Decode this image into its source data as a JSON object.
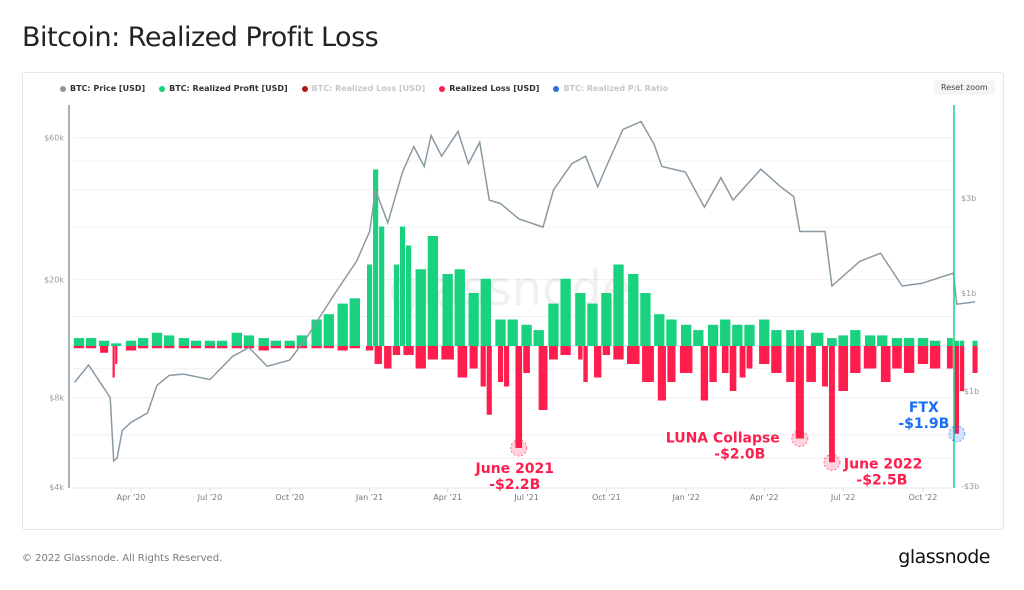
{
  "title": "Bitcoin: Realized Profit Loss",
  "reset_zoom": "Reset zoom",
  "footer": "© 2022 Glassnode. All Rights Reserved.",
  "logo": "glassnode",
  "watermark": "glassnode",
  "legend": [
    {
      "label": "BTC: Price [USD]",
      "color": "#8a9aa3",
      "active": true
    },
    {
      "label": "BTC: Realized Profit [USD]",
      "color": "#19d17f",
      "active": true
    },
    {
      "label": "BTC: Realized Loss [USD]",
      "color": "#b31515",
      "active": false
    },
    {
      "label": "Realized Loss [USD]",
      "color": "#ff1d4e",
      "active": true
    },
    {
      "label": "BTC: Realized P/L Ratio",
      "color": "#2a6dd6",
      "active": false
    }
  ],
  "chart_data": {
    "type": "bar+line",
    "x_ticks": [
      {
        "label": "Apr '20",
        "date": "2020-04-01"
      },
      {
        "label": "Jul '20",
        "date": "2020-07-01"
      },
      {
        "label": "Oct '20",
        "date": "2020-10-01"
      },
      {
        "label": "Jan '21",
        "date": "2021-01-01"
      },
      {
        "label": "Apr '21",
        "date": "2021-04-01"
      },
      {
        "label": "Jul '21",
        "date": "2021-07-01"
      },
      {
        "label": "Oct '21",
        "date": "2021-10-01"
      },
      {
        "label": "Jan '22",
        "date": "2022-01-01"
      },
      {
        "label": "Apr '22",
        "date": "2022-04-01"
      },
      {
        "label": "Jul '22",
        "date": "2022-07-01"
      },
      {
        "label": "Oct '22",
        "date": "2022-10-01"
      }
    ],
    "left_axis": {
      "scale": "log",
      "ticks": [
        {
          "label": "$60k",
          "value": 60000
        },
        {
          "label": "$20k",
          "value": 20000
        },
        {
          "label": "$8k",
          "value": 8000
        },
        {
          "label": "$4k",
          "value": 4000
        }
      ]
    },
    "right_axis": {
      "ticks": [
        {
          "label": "$3b",
          "value": 3
        },
        {
          "label": "$1b",
          "value": 1
        },
        {
          "label": "-$1b",
          "value": -1
        },
        {
          "label": "-$3b",
          "value": -3
        }
      ],
      "unit": "USD billions"
    },
    "price": {
      "name": "BTC: Price [USD]",
      "color": "#8a9aa3",
      "points": [
        [
          "2020-01-27",
          9000
        ],
        [
          "2020-02-12",
          10300
        ],
        [
          "2020-03-01",
          8600
        ],
        [
          "2020-03-08",
          8000
        ],
        [
          "2020-03-12",
          4900
        ],
        [
          "2020-03-16",
          5000
        ],
        [
          "2020-03-22",
          6200
        ],
        [
          "2020-04-01",
          6600
        ],
        [
          "2020-04-20",
          7100
        ],
        [
          "2020-05-01",
          8800
        ],
        [
          "2020-05-15",
          9500
        ],
        [
          "2020-06-01",
          9600
        ],
        [
          "2020-07-01",
          9200
        ],
        [
          "2020-07-27",
          11000
        ],
        [
          "2020-08-15",
          11800
        ],
        [
          "2020-09-05",
          10200
        ],
        [
          "2020-10-01",
          10700
        ],
        [
          "2020-10-21",
          12800
        ],
        [
          "2020-11-05",
          15000
        ],
        [
          "2020-11-25",
          18500
        ],
        [
          "2020-12-17",
          23000
        ],
        [
          "2021-01-01",
          29000
        ],
        [
          "2021-01-08",
          40000
        ],
        [
          "2021-01-22",
          31000
        ],
        [
          "2021-02-08",
          46000
        ],
        [
          "2021-02-21",
          56000
        ],
        [
          "2021-03-05",
          48000
        ],
        [
          "2021-03-13",
          61000
        ],
        [
          "2021-03-25",
          52000
        ],
        [
          "2021-04-13",
          63000
        ],
        [
          "2021-04-25",
          49000
        ],
        [
          "2021-05-08",
          58000
        ],
        [
          "2021-05-19",
          37000
        ],
        [
          "2021-06-01",
          36000
        ],
        [
          "2021-06-22",
          32000
        ],
        [
          "2021-07-20",
          30000
        ],
        [
          "2021-08-01",
          40000
        ],
        [
          "2021-08-22",
          49000
        ],
        [
          "2021-09-07",
          52000
        ],
        [
          "2021-09-21",
          41000
        ],
        [
          "2021-10-01",
          48000
        ],
        [
          "2021-10-20",
          64000
        ],
        [
          "2021-11-10",
          68000
        ],
        [
          "2021-11-25",
          57000
        ],
        [
          "2021-12-04",
          48000
        ],
        [
          "2021-12-31",
          46000
        ],
        [
          "2022-01-22",
          35000
        ],
        [
          "2022-02-10",
          44000
        ],
        [
          "2022-02-24",
          37000
        ],
        [
          "2022-03-28",
          47000
        ],
        [
          "2022-04-20",
          41000
        ],
        [
          "2022-05-05",
          38000
        ],
        [
          "2022-05-12",
          29000
        ],
        [
          "2022-06-10",
          29000
        ],
        [
          "2022-06-18",
          19000
        ],
        [
          "2022-07-20",
          23000
        ],
        [
          "2022-08-13",
          24500
        ],
        [
          "2022-09-07",
          19000
        ],
        [
          "2022-09-30",
          19400
        ],
        [
          "2022-10-25",
          20500
        ],
        [
          "2022-11-05",
          21000
        ],
        [
          "2022-11-09",
          16500
        ],
        [
          "2022-11-30",
          16800
        ]
      ]
    },
    "realized_profit": {
      "name": "BTC: Realized Profit [USD]",
      "color": "#19d17f",
      "points": [
        [
          "2020-02-01",
          0.15
        ],
        [
          "2020-02-15",
          0.15
        ],
        [
          "2020-03-01",
          0.1
        ],
        [
          "2020-03-15",
          0.05
        ],
        [
          "2020-04-01",
          0.1
        ],
        [
          "2020-04-15",
          0.15
        ],
        [
          "2020-05-01",
          0.25
        ],
        [
          "2020-05-15",
          0.2
        ],
        [
          "2020-06-01",
          0.15
        ],
        [
          "2020-06-15",
          0.1
        ],
        [
          "2020-07-01",
          0.1
        ],
        [
          "2020-07-15",
          0.1
        ],
        [
          "2020-08-01",
          0.25
        ],
        [
          "2020-08-15",
          0.2
        ],
        [
          "2020-09-01",
          0.15
        ],
        [
          "2020-09-15",
          0.1
        ],
        [
          "2020-10-01",
          0.1
        ],
        [
          "2020-10-15",
          0.2
        ],
        [
          "2020-11-01",
          0.5
        ],
        [
          "2020-11-15",
          0.6
        ],
        [
          "2020-12-01",
          0.8
        ],
        [
          "2020-12-15",
          0.9
        ],
        [
          "2021-01-01",
          1.6
        ],
        [
          "2021-01-08",
          3.6
        ],
        [
          "2021-01-15",
          2.4
        ],
        [
          "2021-02-01",
          1.6
        ],
        [
          "2021-02-08",
          2.4
        ],
        [
          "2021-02-15",
          2.0
        ],
        [
          "2021-03-01",
          1.5
        ],
        [
          "2021-03-15",
          2.2
        ],
        [
          "2021-04-01",
          1.4
        ],
        [
          "2021-04-15",
          1.5
        ],
        [
          "2021-05-01",
          1.0
        ],
        [
          "2021-05-15",
          1.3
        ],
        [
          "2021-06-01",
          0.5
        ],
        [
          "2021-06-15",
          0.5
        ],
        [
          "2021-07-01",
          0.4
        ],
        [
          "2021-07-15",
          0.3
        ],
        [
          "2021-08-01",
          0.8
        ],
        [
          "2021-08-15",
          1.3
        ],
        [
          "2021-09-01",
          1.0
        ],
        [
          "2021-09-15",
          0.8
        ],
        [
          "2021-10-01",
          1.0
        ],
        [
          "2021-10-15",
          1.6
        ],
        [
          "2021-11-01",
          1.4
        ],
        [
          "2021-11-15",
          1.0
        ],
        [
          "2021-12-01",
          0.6
        ],
        [
          "2021-12-15",
          0.5
        ],
        [
          "2022-01-01",
          0.4
        ],
        [
          "2022-01-15",
          0.3
        ],
        [
          "2022-02-01",
          0.4
        ],
        [
          "2022-02-15",
          0.5
        ],
        [
          "2022-03-01",
          0.4
        ],
        [
          "2022-03-15",
          0.4
        ],
        [
          "2022-04-01",
          0.5
        ],
        [
          "2022-04-15",
          0.3
        ],
        [
          "2022-05-01",
          0.3
        ],
        [
          "2022-05-12",
          0.3
        ],
        [
          "2022-06-01",
          0.25
        ],
        [
          "2022-06-18",
          0.15
        ],
        [
          "2022-07-01",
          0.2
        ],
        [
          "2022-07-15",
          0.3
        ],
        [
          "2022-08-01",
          0.2
        ],
        [
          "2022-08-15",
          0.2
        ],
        [
          "2022-09-01",
          0.15
        ],
        [
          "2022-09-15",
          0.15
        ],
        [
          "2022-10-01",
          0.15
        ],
        [
          "2022-10-15",
          0.1
        ],
        [
          "2022-11-01",
          0.15
        ],
        [
          "2022-11-09",
          0.1
        ],
        [
          "2022-11-15",
          0.1
        ],
        [
          "2022-11-30",
          0.1
        ]
      ]
    },
    "realized_loss": {
      "name": "Realized Loss [USD]",
      "color": "#ff1d4e",
      "points": [
        [
          "2020-02-01",
          -0.05
        ],
        [
          "2020-02-15",
          -0.05
        ],
        [
          "2020-03-01",
          -0.15
        ],
        [
          "2020-03-12",
          -0.7
        ],
        [
          "2020-03-15",
          -0.4
        ],
        [
          "2020-04-01",
          -0.1
        ],
        [
          "2020-04-15",
          -0.05
        ],
        [
          "2020-05-01",
          -0.05
        ],
        [
          "2020-05-15",
          -0.05
        ],
        [
          "2020-06-01",
          -0.05
        ],
        [
          "2020-06-15",
          -0.05
        ],
        [
          "2020-07-01",
          -0.05
        ],
        [
          "2020-07-15",
          -0.05
        ],
        [
          "2020-08-01",
          -0.05
        ],
        [
          "2020-08-15",
          -0.05
        ],
        [
          "2020-09-01",
          -0.1
        ],
        [
          "2020-09-15",
          -0.05
        ],
        [
          "2020-10-01",
          -0.05
        ],
        [
          "2020-10-15",
          -0.05
        ],
        [
          "2020-11-01",
          -0.05
        ],
        [
          "2020-11-15",
          -0.05
        ],
        [
          "2020-12-01",
          -0.1
        ],
        [
          "2020-12-15",
          -0.05
        ],
        [
          "2021-01-01",
          -0.1
        ],
        [
          "2021-01-11",
          -0.4
        ],
        [
          "2021-01-22",
          -0.5
        ],
        [
          "2021-02-01",
          -0.2
        ],
        [
          "2021-02-15",
          -0.2
        ],
        [
          "2021-03-01",
          -0.5
        ],
        [
          "2021-03-15",
          -0.3
        ],
        [
          "2021-04-01",
          -0.3
        ],
        [
          "2021-04-18",
          -0.7
        ],
        [
          "2021-05-01",
          -0.5
        ],
        [
          "2021-05-12",
          -0.9
        ],
        [
          "2021-05-19",
          -1.5
        ],
        [
          "2021-06-01",
          -0.8
        ],
        [
          "2021-06-08",
          -0.9
        ],
        [
          "2021-06-22",
          -2.2
        ],
        [
          "2021-07-01",
          -0.6
        ],
        [
          "2021-07-20",
          -1.4
        ],
        [
          "2021-08-01",
          -0.3
        ],
        [
          "2021-08-15",
          -0.2
        ],
        [
          "2021-09-01",
          -0.3
        ],
        [
          "2021-09-07",
          -0.8
        ],
        [
          "2021-09-21",
          -0.7
        ],
        [
          "2021-10-01",
          -0.2
        ],
        [
          "2021-10-15",
          -0.3
        ],
        [
          "2021-11-01",
          -0.4
        ],
        [
          "2021-11-18",
          -0.8
        ],
        [
          "2021-12-04",
          -1.2
        ],
        [
          "2021-12-15",
          -0.8
        ],
        [
          "2022-01-01",
          -0.6
        ],
        [
          "2022-01-22",
          -1.2
        ],
        [
          "2022-02-01",
          -0.8
        ],
        [
          "2022-02-15",
          -0.6
        ],
        [
          "2022-02-24",
          -1.0
        ],
        [
          "2022-03-07",
          -0.7
        ],
        [
          "2022-03-15",
          -0.5
        ],
        [
          "2022-04-01",
          -0.4
        ],
        [
          "2022-04-15",
          -0.6
        ],
        [
          "2022-05-01",
          -0.8
        ],
        [
          "2022-05-12",
          -2.0
        ],
        [
          "2022-05-25",
          -0.8
        ],
        [
          "2022-06-10",
          -0.9
        ],
        [
          "2022-06-18",
          -2.5
        ],
        [
          "2022-07-01",
          -1.0
        ],
        [
          "2022-07-15",
          -0.6
        ],
        [
          "2022-08-01",
          -0.5
        ],
        [
          "2022-08-19",
          -0.8
        ],
        [
          "2022-09-01",
          -0.5
        ],
        [
          "2022-09-15",
          -0.6
        ],
        [
          "2022-10-01",
          -0.4
        ],
        [
          "2022-10-15",
          -0.5
        ],
        [
          "2022-11-01",
          -0.5
        ],
        [
          "2022-11-09",
          -1.9
        ],
        [
          "2022-11-15",
          -1.0
        ],
        [
          "2022-11-30",
          -0.6
        ]
      ]
    },
    "annotations": [
      {
        "date": "2021-06-22",
        "value": -2.2,
        "lines": [
          "June 2021",
          "-$2.2B"
        ],
        "color": "#ff1d4e"
      },
      {
        "date": "2022-05-12",
        "value": -2.0,
        "lines": [
          "LUNA Collapse",
          "-$2.0B"
        ],
        "color": "#ff1d4e"
      },
      {
        "date": "2022-06-18",
        "value": -2.5,
        "lines": [
          "June 2022",
          "-$2.5B"
        ],
        "color": "#ff1d4e"
      },
      {
        "date": "2022-11-09",
        "value": -1.9,
        "lines": [
          "FTX",
          "-$1.9B"
        ],
        "color": "#1a6ef5"
      }
    ],
    "grid": true,
    "legend_position": "top-left"
  }
}
